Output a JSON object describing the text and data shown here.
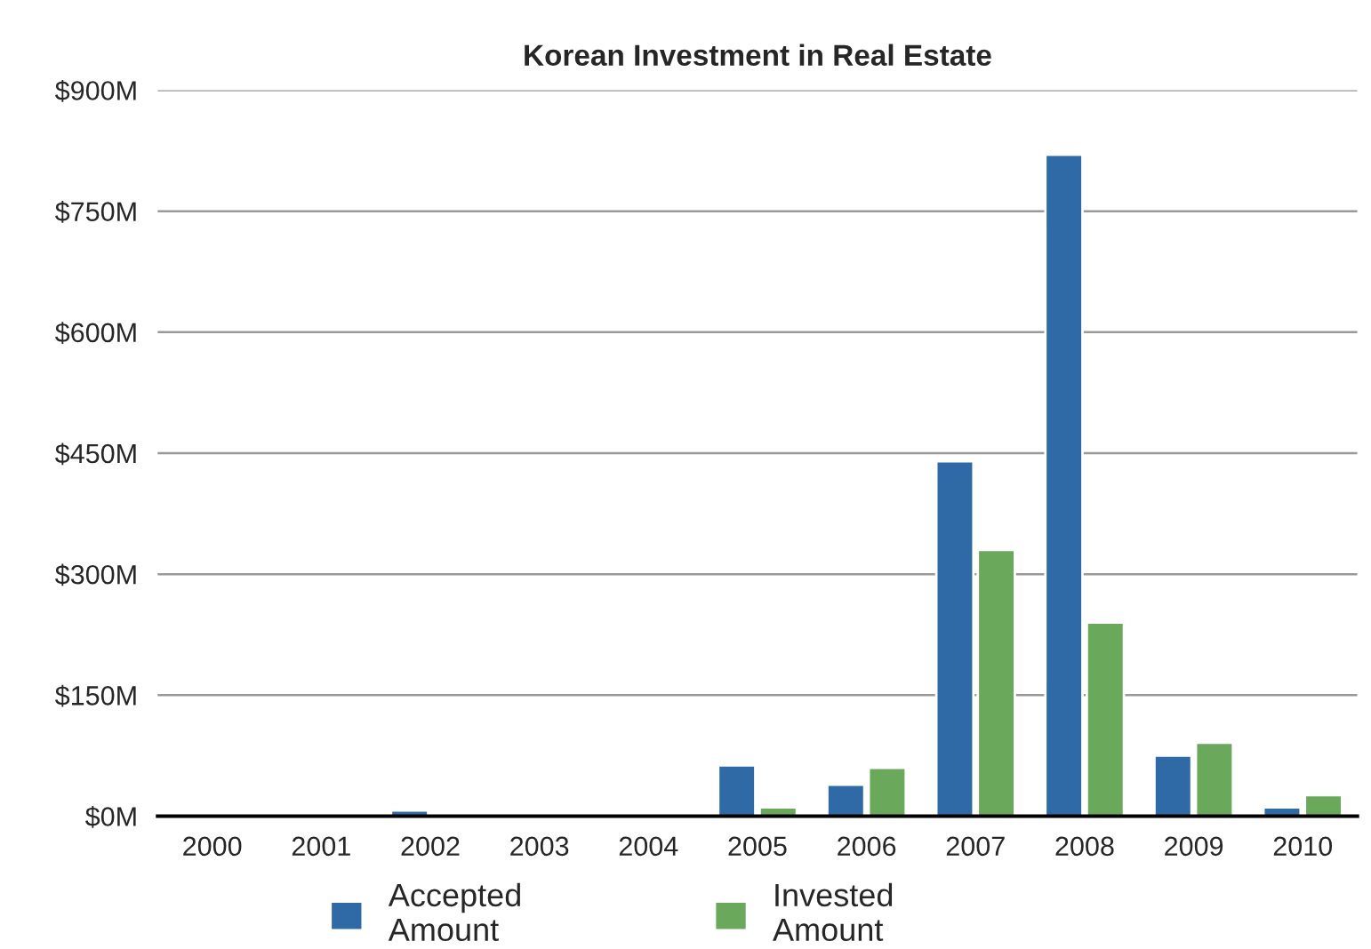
{
  "chart_data": {
    "type": "bar",
    "title": "Korean Investment in Real Estate",
    "categories": [
      "2000",
      "2001",
      "2002",
      "2003",
      "2004",
      "2005",
      "2006",
      "2007",
      "2008",
      "2009",
      "2010"
    ],
    "series": [
      {
        "name": "Accepted\nAmount",
        "color": "#2f6aa6",
        "values": [
          null,
          null,
          7,
          null,
          null,
          63,
          39,
          440,
          820,
          75,
          11
        ]
      },
      {
        "name": "Invested\nAmount",
        "color": "#6aa85c",
        "values": [
          null,
          null,
          3,
          2,
          null,
          11,
          60,
          330,
          240,
          91,
          26
        ]
      }
    ],
    "ylim": [
      0,
      900
    ],
    "yticks": [
      {
        "value": 0,
        "label": "$0M"
      },
      {
        "value": 150,
        "label": "$150M"
      },
      {
        "value": 300,
        "label": "$300M"
      },
      {
        "value": 450,
        "label": "$450M"
      },
      {
        "value": 600,
        "label": "$600M"
      },
      {
        "value": 750,
        "label": "$750M"
      },
      {
        "value": 900,
        "label": "$900M"
      }
    ],
    "grid": "y",
    "legend": "bottom"
  }
}
